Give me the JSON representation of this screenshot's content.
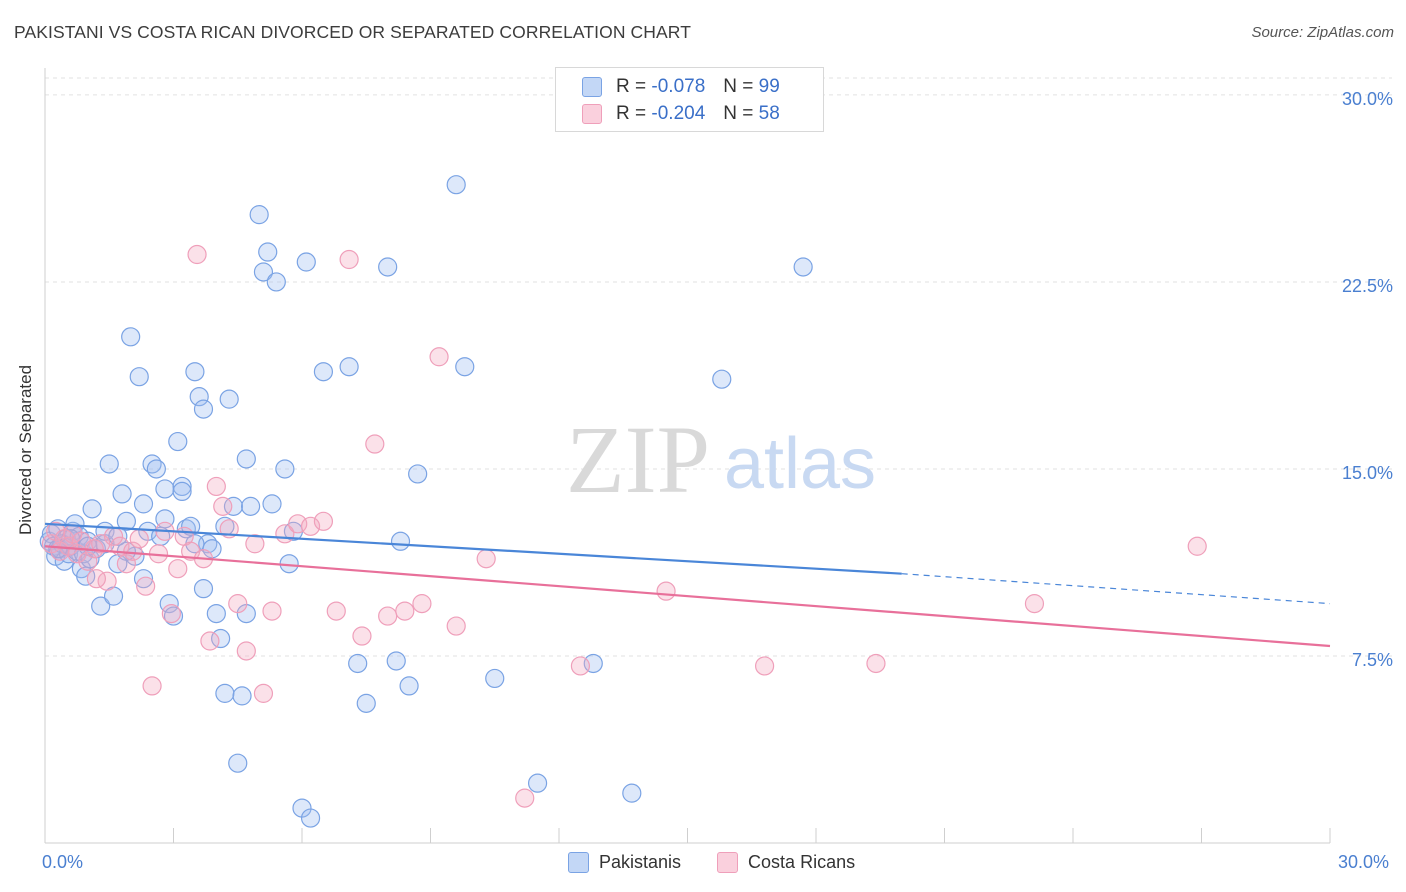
{
  "title": "PAKISTANI VS COSTA RICAN DIVORCED OR SEPARATED CORRELATION CHART",
  "source": "Source: ZipAtlas.com",
  "watermark": {
    "zip": "ZIP",
    "atlas": "atlas"
  },
  "legend": {
    "rows": [
      {
        "r_label": "R = ",
        "r_value": "-0.078",
        "n_label": "N = ",
        "n_value": "99",
        "color": "#9dbdf0"
      },
      {
        "r_label": "R = ",
        "r_value": "-0.204",
        "n_label": "N = ",
        "n_value": "58",
        "color": "#f4a8c0"
      }
    ]
  },
  "bottom_legend": {
    "items": [
      {
        "label": "Pakistanis",
        "color": "#9dbdf0"
      },
      {
        "label": "Costa Ricans",
        "color": "#f4a8c0"
      }
    ]
  },
  "chart_data": {
    "type": "scatter",
    "title": "PAKISTANI VS COSTA RICAN DIVORCED OR SEPARATED CORRELATION CHART",
    "xlabel": "",
    "ylabel": "Divorced or Separated",
    "xlim": [
      0,
      30
    ],
    "ylim": [
      0,
      31
    ],
    "x_tick_labels": [
      "0.0%",
      "30.0%"
    ],
    "y_ticks": [
      7.5,
      15.0,
      22.5,
      30.0
    ],
    "y_tick_labels": [
      "7.5%",
      "15.0%",
      "22.5%",
      "30.0%"
    ],
    "grid": true,
    "legend_position": "top-center",
    "series": [
      {
        "name": "Pakistanis",
        "color": "#4a86d8",
        "trend": {
          "x": [
            0,
            20
          ],
          "y": [
            12.8,
            10.8
          ],
          "dashed_to": [
            30,
            9.6
          ]
        },
        "x": [
          0.1,
          0.15,
          0.2,
          0.25,
          0.3,
          0.35,
          0.4,
          0.45,
          0.5,
          0.55,
          0.6,
          0.65,
          0.7,
          0.75,
          0.8,
          0.85,
          0.9,
          0.95,
          1.0,
          1.05,
          1.1,
          1.2,
          1.3,
          1.4,
          1.5,
          1.6,
          1.7,
          1.8,
          1.9,
          2.0,
          2.1,
          2.2,
          2.3,
          2.4,
          2.5,
          2.6,
          2.7,
          2.8,
          2.9,
          3.0,
          3.1,
          3.2,
          3.3,
          3.4,
          3.5,
          3.6,
          3.7,
          3.8,
          3.9,
          4.0,
          4.1,
          4.2,
          4.3,
          4.4,
          4.5,
          4.6,
          4.7,
          4.8,
          5.0,
          5.1,
          5.2,
          5.4,
          5.6,
          5.8,
          6.0,
          6.2,
          6.5,
          7.3,
          7.5,
          8.2,
          8.5,
          8.7,
          9.6,
          10.5,
          11.5,
          12.8,
          13.7,
          15.8,
          17.7,
          0.3,
          0.6,
          1.0,
          1.4,
          1.9,
          2.3,
          2.8,
          3.2,
          3.7,
          4.2,
          4.7,
          5.3,
          6.1,
          7.1,
          8.0,
          9.8,
          1.7,
          3.5,
          5.7,
          8.3
        ],
        "y": [
          12.1,
          12.4,
          11.9,
          11.5,
          12.6,
          11.8,
          12.0,
          11.3,
          12.2,
          11.6,
          11.9,
          12.5,
          12.8,
          11.7,
          12.3,
          11.0,
          11.6,
          10.7,
          12.1,
          11.4,
          13.4,
          11.8,
          9.5,
          12.0,
          15.2,
          9.9,
          11.2,
          14.0,
          12.9,
          20.3,
          11.5,
          18.7,
          13.6,
          12.5,
          15.2,
          15.0,
          12.3,
          14.2,
          9.6,
          9.1,
          16.1,
          14.3,
          12.6,
          12.7,
          18.9,
          17.9,
          17.4,
          12.0,
          11.8,
          9.2,
          8.2,
          6.0,
          17.8,
          13.5,
          3.2,
          5.9,
          15.4,
          13.5,
          25.2,
          22.9,
          23.7,
          22.5,
          15.0,
          12.5,
          1.4,
          1.0,
          18.9,
          7.2,
          5.6,
          7.3,
          6.3,
          14.8,
          26.4,
          6.6,
          2.4,
          7.2,
          2.0,
          18.6,
          23.1,
          11.8,
          12.2,
          11.9,
          12.5,
          11.7,
          10.6,
          13.0,
          14.1,
          10.2,
          12.7,
          9.2,
          13.6,
          23.3,
          19.1,
          23.1,
          19.1,
          12.3,
          12.0,
          11.2,
          12.1
        ],
        "point_count": 99
      },
      {
        "name": "Costa Ricans",
        "color": "#e8709a",
        "trend": {
          "x": [
            0,
            30
          ],
          "y": [
            11.9,
            7.9
          ]
        },
        "x": [
          0.15,
          0.25,
          0.35,
          0.45,
          0.55,
          0.65,
          0.75,
          0.85,
          1.0,
          1.15,
          1.3,
          1.45,
          1.6,
          1.75,
          1.9,
          2.05,
          2.2,
          2.35,
          2.5,
          2.65,
          2.8,
          2.95,
          3.1,
          3.25,
          3.4,
          3.55,
          3.7,
          3.85,
          4.0,
          4.15,
          4.3,
          4.5,
          4.7,
          4.9,
          5.1,
          5.3,
          5.6,
          5.9,
          6.2,
          6.5,
          6.8,
          7.1,
          7.4,
          7.7,
          8.0,
          8.4,
          8.8,
          9.2,
          9.6,
          10.3,
          11.2,
          12.5,
          14.5,
          16.8,
          19.4,
          23.1,
          26.9,
          1.2
        ],
        "y": [
          12.0,
          12.5,
          11.7,
          12.2,
          11.9,
          12.4,
          11.6,
          12.1,
          11.3,
          11.8,
          12.0,
          10.5,
          12.3,
          11.9,
          11.2,
          11.7,
          12.2,
          10.3,
          6.3,
          11.6,
          12.5,
          9.2,
          11.0,
          12.3,
          11.7,
          23.6,
          11.4,
          8.1,
          14.3,
          13.5,
          12.6,
          9.6,
          7.7,
          12.0,
          6.0,
          9.3,
          12.4,
          12.8,
          12.7,
          12.9,
          9.3,
          23.4,
          8.3,
          16.0,
          9.1,
          9.3,
          9.6,
          19.5,
          8.7,
          11.4,
          1.8,
          7.1,
          10.1,
          7.1,
          7.2,
          9.6,
          11.9,
          10.6
        ],
        "point_count": 58
      }
    ]
  }
}
